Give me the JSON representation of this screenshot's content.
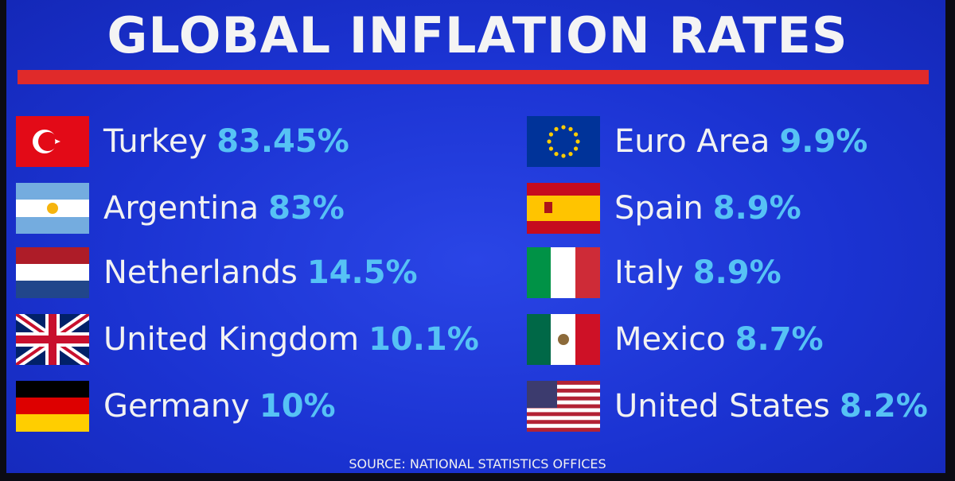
{
  "title": "GLOBAL INFLATION RATES",
  "items": [
    {
      "country": "Turkey",
      "rate": "83.45%"
    },
    {
      "country": "Argentina",
      "rate": "83%"
    },
    {
      "country": "Netherlands",
      "rate": "14.5%"
    },
    {
      "country": "United Kingdom",
      "rate": "10.1%"
    },
    {
      "country": "Germany",
      "rate": "10%"
    },
    {
      "country": "Euro Area",
      "rate": "9.9%"
    },
    {
      "country": "Spain",
      "rate": "8.9%"
    },
    {
      "country": "Italy",
      "rate": "8.9%"
    },
    {
      "country": "Mexico",
      "rate": "8.7%"
    },
    {
      "country": "United States",
      "rate": "8.2%"
    }
  ],
  "source": "SOURCE: NATIONAL STATISTICS OFFICES"
}
